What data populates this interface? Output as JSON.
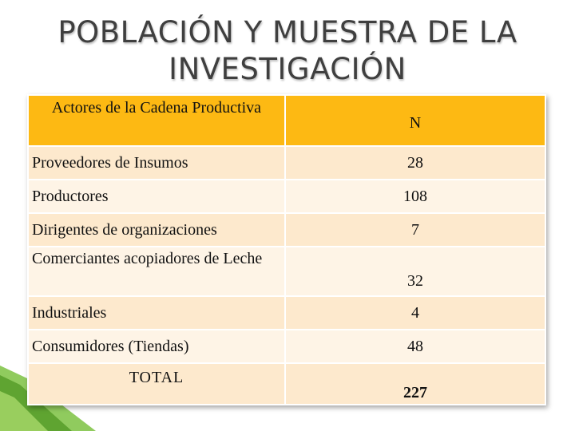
{
  "title": {
    "line1": "POBLACIÓN Y MUESTRA DE LA",
    "line2": "INVESTIGACIÓN"
  },
  "table": {
    "headers": [
      "Actores de la Cadena Productiva",
      "N"
    ],
    "rows": [
      {
        "actor": "Proveedores de Insumos",
        "n": "28"
      },
      {
        "actor": "Productores",
        "n": "108"
      },
      {
        "actor": "Dirigentes de organizaciones",
        "n": "7"
      },
      {
        "actor": "Comerciantes acopiadores de Leche",
        "n": "32"
      },
      {
        "actor": "Industriales",
        "n": "4"
      },
      {
        "actor": "Consumidores (Tiendas)",
        "n": "48"
      }
    ],
    "total": {
      "label": "TOTAL",
      "n": "227"
    }
  },
  "colors": {
    "header": "#fdb913",
    "row_dark": "#fde9cd",
    "row_light": "#fef4e6",
    "title": "#3f3f3f",
    "accent_green": "#7cc242"
  }
}
